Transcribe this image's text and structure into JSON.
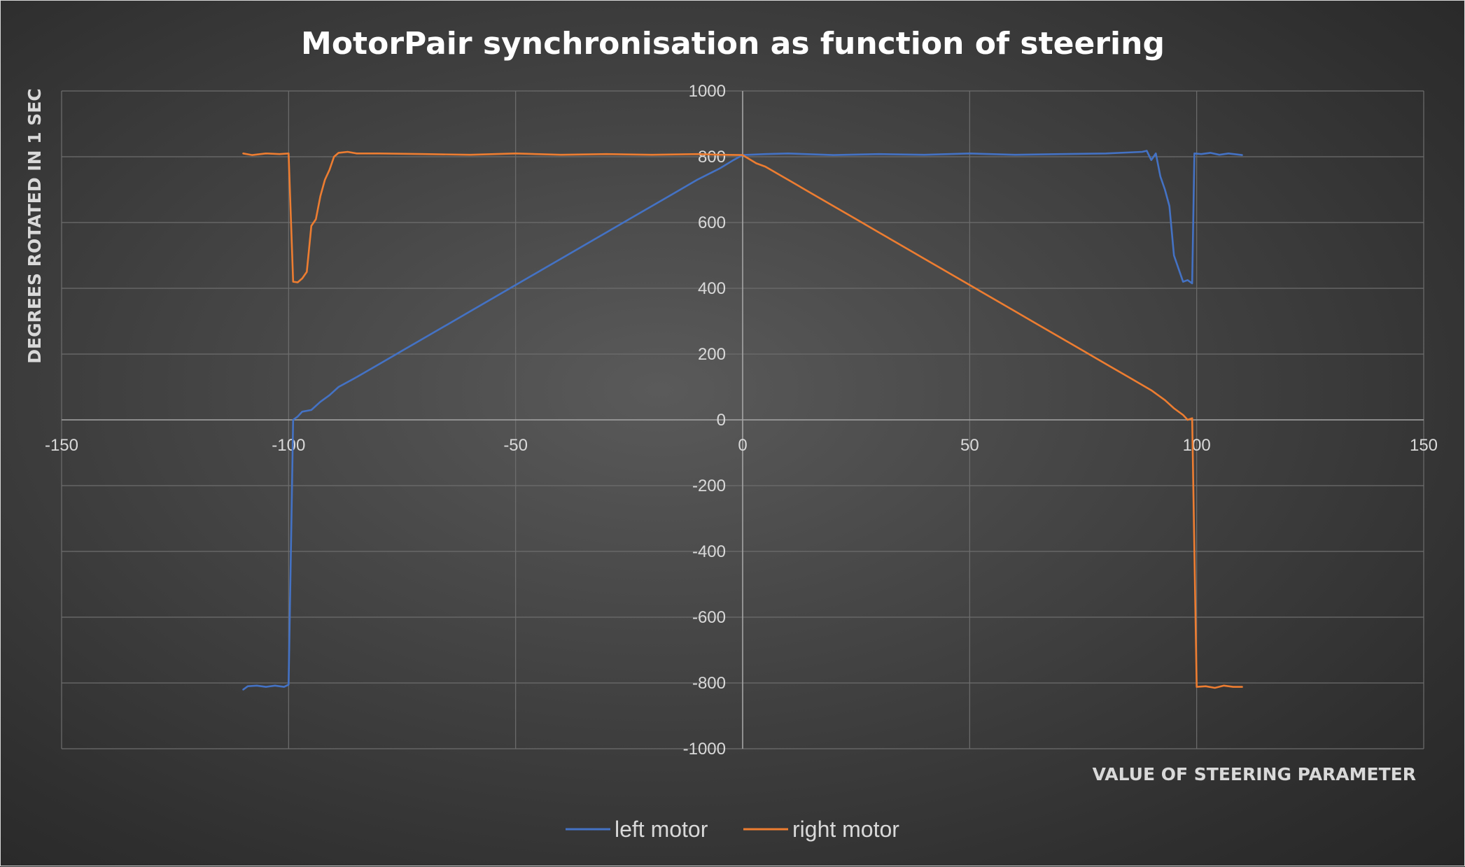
{
  "chart_data": {
    "type": "scatter",
    "title": "MotorPair synchronisation as function of steering",
    "xlabel": "VALUE OF STEERING PARAMETER",
    "ylabel": "DEGREES ROTATED IN 1 SEC",
    "xlim": [
      -150,
      150
    ],
    "ylim": [
      -1000,
      1000
    ],
    "x_ticks": [
      -150,
      -100,
      -50,
      0,
      50,
      100,
      150
    ],
    "y_ticks": [
      -1000,
      -800,
      -600,
      -400,
      -200,
      0,
      200,
      400,
      600,
      800,
      1000
    ],
    "grid": true,
    "legend_position": "bottom",
    "series": [
      {
        "name": "left motor",
        "color": "#4472C4",
        "points": [
          [
            -110,
            -820
          ],
          [
            -109,
            -810
          ],
          [
            -107,
            -808
          ],
          [
            -105,
            -812
          ],
          [
            -103,
            -808
          ],
          [
            -101,
            -812
          ],
          [
            -100,
            -805
          ],
          [
            -99.5,
            -400
          ],
          [
            -99,
            0
          ],
          [
            -98,
            10
          ],
          [
            -97,
            25
          ],
          [
            -95,
            30
          ],
          [
            -93,
            55
          ],
          [
            -91,
            75
          ],
          [
            -89,
            100
          ],
          [
            -85,
            130
          ],
          [
            -80,
            170
          ],
          [
            -75,
            210
          ],
          [
            -70,
            250
          ],
          [
            -65,
            290
          ],
          [
            -60,
            330
          ],
          [
            -55,
            370
          ],
          [
            -50,
            410
          ],
          [
            -45,
            450
          ],
          [
            -40,
            490
          ],
          [
            -35,
            530
          ],
          [
            -30,
            570
          ],
          [
            -25,
            610
          ],
          [
            -20,
            650
          ],
          [
            -15,
            690
          ],
          [
            -10,
            730
          ],
          [
            -5,
            765
          ],
          [
            -2,
            790
          ],
          [
            0,
            805
          ],
          [
            5,
            808
          ],
          [
            10,
            810
          ],
          [
            20,
            805
          ],
          [
            30,
            808
          ],
          [
            40,
            806
          ],
          [
            50,
            810
          ],
          [
            60,
            806
          ],
          [
            70,
            808
          ],
          [
            80,
            810
          ],
          [
            88,
            815
          ],
          [
            89,
            818
          ],
          [
            90,
            790
          ],
          [
            91,
            810
          ],
          [
            92,
            740
          ],
          [
            93,
            700
          ],
          [
            94,
            650
          ],
          [
            95,
            500
          ],
          [
            96,
            460
          ],
          [
            97,
            420
          ],
          [
            98,
            425
          ],
          [
            99,
            415
          ],
          [
            99.5,
            810
          ],
          [
            101,
            808
          ],
          [
            103,
            812
          ],
          [
            105,
            806
          ],
          [
            107,
            810
          ],
          [
            110,
            805
          ]
        ]
      },
      {
        "name": "right motor",
        "color": "#ED7D31",
        "points": [
          [
            -110,
            810
          ],
          [
            -108,
            805
          ],
          [
            -105,
            810
          ],
          [
            -102,
            808
          ],
          [
            -100,
            810
          ],
          [
            -99,
            420
          ],
          [
            -98,
            418
          ],
          [
            -97,
            430
          ],
          [
            -96,
            450
          ],
          [
            -95,
            590
          ],
          [
            -94,
            610
          ],
          [
            -93,
            680
          ],
          [
            -92,
            730
          ],
          [
            -91,
            760
          ],
          [
            -90,
            800
          ],
          [
            -89,
            812
          ],
          [
            -87,
            815
          ],
          [
            -85,
            810
          ],
          [
            -80,
            810
          ],
          [
            -70,
            808
          ],
          [
            -60,
            806
          ],
          [
            -50,
            810
          ],
          [
            -40,
            806
          ],
          [
            -30,
            808
          ],
          [
            -20,
            806
          ],
          [
            -10,
            808
          ],
          [
            -5,
            806
          ],
          [
            0,
            805
          ],
          [
            3,
            780
          ],
          [
            5,
            770
          ],
          [
            10,
            730
          ],
          [
            15,
            690
          ],
          [
            20,
            650
          ],
          [
            25,
            610
          ],
          [
            30,
            570
          ],
          [
            35,
            530
          ],
          [
            40,
            490
          ],
          [
            45,
            450
          ],
          [
            50,
            410
          ],
          [
            55,
            370
          ],
          [
            60,
            330
          ],
          [
            65,
            290
          ],
          [
            70,
            250
          ],
          [
            75,
            210
          ],
          [
            80,
            170
          ],
          [
            85,
            130
          ],
          [
            90,
            90
          ],
          [
            93,
            60
          ],
          [
            95,
            35
          ],
          [
            97,
            15
          ],
          [
            98,
            0
          ],
          [
            99,
            5
          ],
          [
            99.5,
            -400
          ],
          [
            100,
            -812
          ],
          [
            102,
            -810
          ],
          [
            104,
            -815
          ],
          [
            106,
            -808
          ],
          [
            108,
            -812
          ],
          [
            110,
            -812
          ]
        ]
      }
    ]
  }
}
